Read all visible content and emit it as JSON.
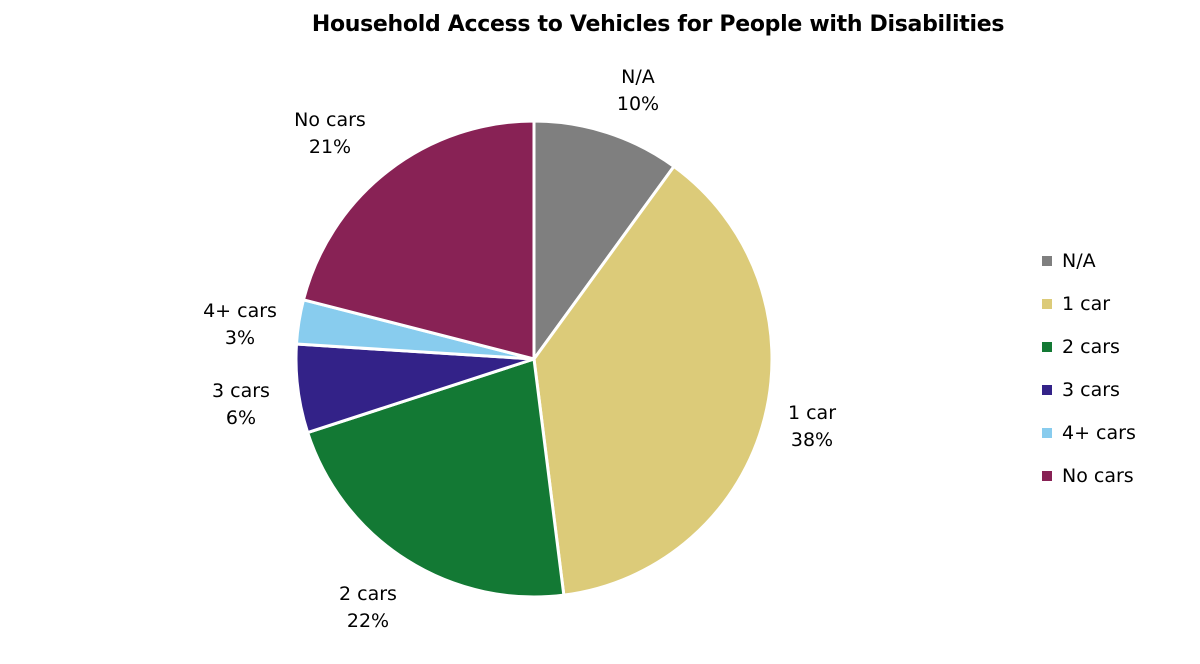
{
  "chart_data": {
    "type": "pie",
    "title": "Household Access to Vehicles for People with Disabilities",
    "categories": [
      "N/A",
      "1 car",
      "2 cars",
      "3 cars",
      "4+ cars",
      "No cars"
    ],
    "values": [
      10,
      38,
      22,
      6,
      3,
      21
    ],
    "value_labels": [
      "10%",
      "38%",
      "22%",
      "6%",
      "3%",
      "21%"
    ],
    "colors": [
      "#7f7f7f",
      "#dccb79",
      "#137934",
      "#332288",
      "#88ccee",
      "#882255"
    ],
    "start_angle_deg": 0,
    "direction": "clockwise",
    "legend_position": "right",
    "legend": [
      "N/A",
      "1 car",
      "2 cars",
      "3 cars",
      "4+ cars",
      "No cars"
    ]
  },
  "labels": [
    {
      "name": "N/A",
      "pct": "10%"
    },
    {
      "name": "1 car",
      "pct": "38%"
    },
    {
      "name": "2 cars",
      "pct": "22%"
    },
    {
      "name": "3 cars",
      "pct": "6%"
    },
    {
      "name": "4+ cars",
      "pct": "3%"
    },
    {
      "name": "No cars",
      "pct": "21%"
    }
  ]
}
